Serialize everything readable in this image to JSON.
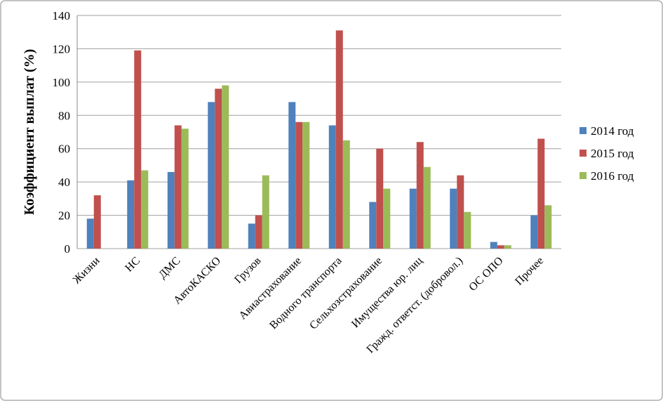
{
  "chart_data": {
    "type": "bar",
    "y_label": "Коэффициент выплат (%)",
    "categories": [
      "Жизни",
      "НС",
      "ДМС",
      "АвтоКАСКО",
      "Грузов",
      "Авиастрахование",
      "Водного транспорта",
      "Сельхозстрахование",
      "Имущества юр. лиц",
      "Гражд. ответст. (добровол.)",
      "ОС ОПО",
      "Прочее"
    ],
    "series": [
      {
        "name": "2014 год",
        "color": "#4f81bd",
        "values": [
          18,
          41,
          46,
          88,
          15,
          88,
          74,
          28,
          36,
          36,
          4,
          20
        ]
      },
      {
        "name": "2015 год",
        "color": "#c0504d",
        "values": [
          32,
          119,
          74,
          96,
          20,
          76,
          131,
          60,
          64,
          44,
          2,
          66
        ]
      },
      {
        "name": "2016 год",
        "color": "#9bbb59",
        "values": [
          null,
          47,
          72,
          98,
          44,
          76,
          65,
          36,
          49,
          22,
          2,
          26
        ]
      }
    ],
    "ylim": [
      0,
      140
    ],
    "yticks": [
      0,
      20,
      40,
      60,
      80,
      100,
      120,
      140
    ],
    "grid": true,
    "legend": "right"
  }
}
